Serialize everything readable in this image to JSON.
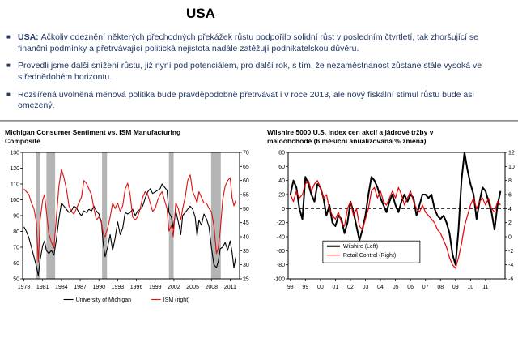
{
  "slide": {
    "title": "USA",
    "accent_color": "#1f3864",
    "bullets": [
      {
        "bold": "USA: ",
        "text": "Ačkoliv odeznění některých přechodných překážek růstu podpořilo solidní růst v posledním čtvrtletí, tak zhoršující se finanční podmínky a přetrvávající politická nejistota nadále zatěžují podnikatelskou důvěru."
      },
      {
        "bold": "",
        "text": "Provedli jsme další snížení růstu, již nyní pod potenciálem, pro další rok, s tím, že nezaměstnanost zůstane stále vysoká ve střednědobém horizontu."
      },
      {
        "bold": "",
        "text": "Rozšířená uvolněná měnová politika bude pravděpodobně přetrvávat i v roce 2013, ale nový fiskální stimul růstu bude asi omezený."
      }
    ]
  },
  "chart_data": [
    {
      "type": "line",
      "name": "michigan-ism",
      "title": "Michigan Consumer Sentiment vs. ISM Manufacturing Composite",
      "xlim": [
        1977.8,
        2012.5
      ],
      "x_ticks": [
        1978,
        1981,
        1984,
        1987,
        1990,
        1993,
        1996,
        1999,
        2002,
        2005,
        2008,
        2011
      ],
      "x_labels": [
        "1978",
        "1981",
        "1984",
        "1987",
        "1990",
        "1993",
        "1996",
        "1999",
        "2002",
        "2005",
        "2008",
        "2011"
      ],
      "left_axis": {
        "min": 50,
        "max": 130,
        "step": 10
      },
      "right_axis": {
        "min": 25,
        "max": 70,
        "step": 5
      },
      "band_color": "#b5b5b5",
      "recession_bands": [
        [
          1980.0,
          1980.6
        ],
        [
          1981.6,
          1983.0
        ],
        [
          1990.5,
          1991.3
        ],
        [
          2001.2,
          2001.95
        ],
        [
          2007.95,
          2009.5
        ]
      ],
      "legend": "bottom",
      "ml": 22,
      "mr": 18,
      "mb": 34,
      "x": [
        1978.0,
        1978.4,
        1978.8,
        1979.2,
        1979.6,
        1980.0,
        1980.3,
        1980.6,
        1981.0,
        1981.3,
        1981.6,
        1982.0,
        1982.4,
        1982.8,
        1983.2,
        1983.6,
        1984.0,
        1984.4,
        1984.8,
        1985.2,
        1985.6,
        1986.0,
        1986.4,
        1986.8,
        1987.2,
        1987.6,
        1988.0,
        1988.4,
        1988.8,
        1989.2,
        1989.6,
        1990.0,
        1990.4,
        1990.7,
        1991.0,
        1991.4,
        1991.8,
        1992.2,
        1992.6,
        1993.0,
        1993.4,
        1993.8,
        1994.2,
        1994.6,
        1995.0,
        1995.4,
        1995.8,
        1996.2,
        1996.6,
        1997.0,
        1997.4,
        1997.8,
        1998.2,
        1998.6,
        1999.0,
        1999.4,
        1999.8,
        2000.1,
        2000.5,
        2000.9,
        2001.2,
        2001.6,
        2001.9,
        2002.3,
        2002.7,
        2003.1,
        2003.4,
        2003.8,
        2004.2,
        2004.6,
        2005.0,
        2005.4,
        2005.7,
        2006.0,
        2006.4,
        2006.8,
        2007.2,
        2007.6,
        2008.0,
        2008.4,
        2008.8,
        2009.1,
        2009.4,
        2009.8,
        2010.2,
        2010.6,
        2011.0,
        2011.3,
        2011.6,
        2011.9
      ],
      "series": [
        {
          "name": "University of Michigan",
          "axis": "left",
          "color": "#000000",
          "width": 1.1,
          "values": [
            83,
            80,
            76,
            70,
            64,
            58,
            52,
            62,
            71,
            74,
            68,
            66,
            68,
            65,
            75,
            88,
            98,
            96,
            94,
            92,
            93,
            96,
            95,
            92,
            90,
            93,
            92,
            94,
            93,
            96,
            93,
            91,
            86,
            72,
            64,
            70,
            78,
            68,
            76,
            86,
            78,
            82,
            92,
            91,
            92,
            94,
            90,
            93,
            94,
            96,
            101,
            105,
            107,
            104,
            105,
            106,
            107,
            110,
            108,
            106,
            92,
            89,
            82,
            93,
            86,
            78,
            90,
            92,
            94,
            96,
            94,
            89,
            77,
            87,
            84,
            91,
            88,
            83,
            70,
            59,
            57,
            61,
            69,
            70,
            73,
            68,
            74,
            67,
            57,
            64
          ]
        },
        {
          "name": "ISM (right)",
          "axis": "right",
          "color": "#dd1111",
          "width": 1.1,
          "values": [
            57,
            56,
            55,
            52,
            50,
            45,
            31,
            46,
            53,
            55,
            49,
            41,
            38,
            36,
            47,
            58,
            64,
            61,
            57,
            51,
            49,
            48,
            50,
            52,
            54,
            60,
            59,
            57,
            55,
            50,
            46,
            47,
            45,
            41,
            40,
            43,
            47,
            52,
            50,
            52,
            49,
            51,
            57,
            59,
            55,
            47,
            46,
            47,
            50,
            54,
            56,
            55,
            52,
            49,
            50,
            53,
            55,
            56,
            53,
            50,
            42,
            44,
            40,
            52,
            50,
            46,
            50,
            54,
            60,
            62,
            56,
            54,
            52,
            56,
            54,
            52,
            52,
            50,
            49,
            44,
            34,
            36,
            42,
            53,
            58,
            60,
            61,
            54,
            51,
            53
          ]
        }
      ]
    },
    {
      "type": "line",
      "name": "wilshire-retail",
      "title": "Wilshire 5000 U.S. index cen akcií a jádrové tržby v maloobchodě (6 měsíční anualizovaná % změna)",
      "xlim": [
        1997.85,
        2012.3
      ],
      "x_ticks": [
        1998,
        1999,
        2000,
        2001,
        2002,
        2003,
        2004,
        2005,
        2006,
        2007,
        2008,
        2009,
        2010,
        2011
      ],
      "x_labels": [
        "98",
        "99",
        "00",
        "01",
        "02",
        "03",
        "04",
        "05",
        "06",
        "07",
        "08",
        "09",
        "10",
        "11"
      ],
      "left_axis": {
        "min": -100,
        "max": 80,
        "step": 20
      },
      "right_axis": {
        "min": -6,
        "max": 12,
        "step": 2
      },
      "zero_line": true,
      "legend": "box",
      "legend_box": {
        "fx": 0.16,
        "fy": 0.7,
        "w": 120,
        "h": 27
      },
      "ml": 26,
      "mr": 16,
      "mb": 34,
      "x": [
        1998,
        1998.2,
        1998.4,
        1998.6,
        1998.8,
        1999,
        1999.2,
        1999.4,
        1999.6,
        1999.8,
        2000,
        2000.2,
        2000.4,
        2000.6,
        2000.8,
        2001,
        2001.2,
        2001.4,
        2001.6,
        2001.8,
        2002,
        2002.2,
        2002.4,
        2002.6,
        2002.8,
        2003,
        2003.2,
        2003.4,
        2003.6,
        2003.8,
        2004,
        2004.2,
        2004.4,
        2004.6,
        2004.8,
        2005,
        2005.2,
        2005.4,
        2005.6,
        2005.8,
        2006,
        2006.2,
        2006.4,
        2006.6,
        2006.8,
        2007,
        2007.2,
        2007.4,
        2007.6,
        2007.8,
        2008,
        2008.2,
        2008.4,
        2008.6,
        2008.8,
        2009,
        2009.2,
        2009.4,
        2009.6,
        2009.8,
        2010,
        2010.2,
        2010.4,
        2010.6,
        2010.8,
        2011,
        2011.2,
        2011.4,
        2011.6,
        2011.8,
        2012
      ],
      "series": [
        {
          "name": "Wilshire (Left)",
          "axis": "left",
          "color": "#000000",
          "width": 2,
          "values": [
            20,
            40,
            30,
            0,
            -15,
            45,
            35,
            20,
            10,
            35,
            30,
            15,
            -10,
            5,
            -20,
            -25,
            -10,
            -15,
            -35,
            -20,
            10,
            -5,
            -25,
            -45,
            -30,
            -10,
            20,
            45,
            40,
            30,
            15,
            5,
            -5,
            10,
            20,
            5,
            -5,
            10,
            20,
            10,
            20,
            15,
            -10,
            5,
            20,
            20,
            15,
            20,
            0,
            -10,
            -15,
            -10,
            -20,
            -35,
            -65,
            -80,
            -30,
            40,
            80,
            55,
            35,
            20,
            -15,
            10,
            30,
            25,
            10,
            -5,
            -30,
            5,
            25
          ]
        },
        {
          "name": "Retail Control (Right)",
          "axis": "right",
          "color": "#e60000",
          "width": 1.2,
          "values": [
            6,
            5,
            6.5,
            5.5,
            6,
            7.5,
            8,
            6.5,
            7.5,
            8,
            7,
            5.5,
            6,
            4,
            3,
            2.5,
            3.5,
            2,
            1.5,
            4,
            5,
            3,
            4,
            1.5,
            1,
            2.5,
            4,
            6.5,
            7,
            5.5,
            6.5,
            5,
            4.5,
            5.5,
            6.5,
            5.5,
            7,
            6,
            4.5,
            5.5,
            6.5,
            5,
            4,
            3.5,
            4.5,
            3.5,
            3,
            2.5,
            2,
            1,
            0.5,
            -0.5,
            -1.5,
            -3,
            -4,
            -4.5,
            -3,
            -1,
            1.5,
            3,
            4.5,
            5.5,
            4,
            5,
            5.5,
            4.5,
            5.5,
            4,
            3.5,
            5,
            4.5
          ]
        }
      ]
    }
  ]
}
